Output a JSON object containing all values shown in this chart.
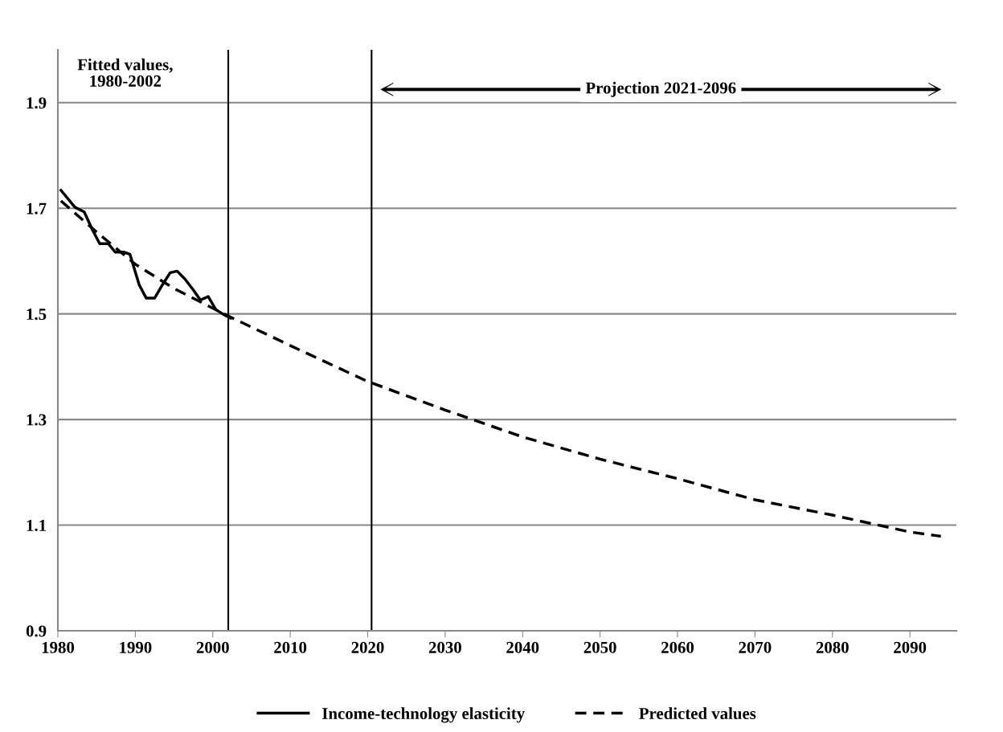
{
  "chart_data": {
    "type": "line",
    "annotations": [
      "Fitted values,\n1980-2002",
      "Projection 2021-2096"
    ],
    "series": [
      {
        "name": "Income-technology elasticity",
        "color": "#000000",
        "line_style": "solid",
        "x": [
          1980.4,
          1982.2,
          1983.4,
          1984.5,
          1985.4,
          1986.5,
          1987.4,
          1988.5,
          1989.3,
          1990.5,
          1991.4,
          1992.5,
          1993.5,
          1994.5,
          1995.4,
          1996.4,
          1997.5,
          1998.4,
          1999.4,
          2000.4,
          2001.5,
          2002.3
        ],
        "values": [
          1.734,
          1.702,
          1.693,
          1.658,
          1.633,
          1.633,
          1.617,
          1.617,
          1.613,
          1.555,
          1.53,
          1.53,
          1.555,
          1.578,
          1.581,
          1.566,
          1.545,
          1.526,
          1.533,
          1.508,
          1.498,
          1.492
        ]
      },
      {
        "name": "Predicted values",
        "color": "#000000",
        "line_style": "dashed",
        "x": [
          1980.4,
          1985,
          1990,
          1995,
          2002,
          2010,
          2020,
          2030,
          2040,
          2050,
          2060,
          2070,
          2080,
          2090,
          2094
        ],
        "values": [
          1.714,
          1.655,
          1.594,
          1.548,
          1.496,
          1.44,
          1.372,
          1.318,
          1.267,
          1.225,
          1.188,
          1.148,
          1.119,
          1.087,
          1.079
        ]
      }
    ],
    "ref_lines": [
      {
        "axis": "x",
        "value": 2002,
        "color": "#000000"
      },
      {
        "axis": "x",
        "value": 2020.5,
        "color": "#000000"
      }
    ],
    "xlim": [
      1980,
      2096
    ],
    "xticks": [
      1980,
      1990,
      2000,
      2010,
      2020,
      2030,
      2040,
      2050,
      2060,
      2070,
      2080,
      2090
    ],
    "ylim": [
      0.9,
      2.0
    ],
    "yticks": [
      0.9,
      1.1,
      1.3,
      1.5,
      1.7,
      1.9
    ],
    "grid": "y",
    "legend": "bottom",
    "marker": "none"
  }
}
